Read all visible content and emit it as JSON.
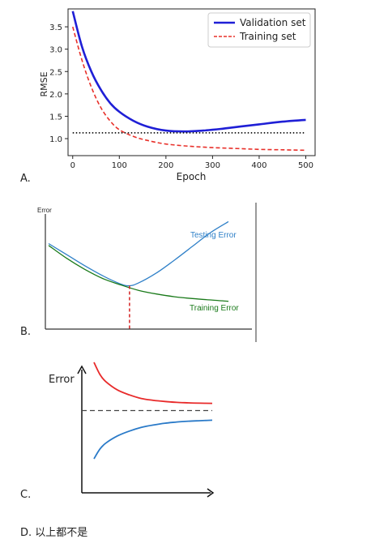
{
  "options": {
    "a_label": "A.",
    "b_label": "B.",
    "c_label": "C.",
    "d_text": "D. 以上都不是"
  },
  "chart_data": [
    {
      "type": "line",
      "xlabel": "Epoch",
      "ylabel": "RMSE",
      "xlim": [
        -10,
        520
      ],
      "ylim": [
        0.62,
        3.9
      ],
      "xticks": [
        "0",
        "100",
        "200",
        "300",
        "400",
        "500"
      ],
      "yticks": [
        "1.0",
        "1.5",
        "2.0",
        "2.5",
        "3.0",
        "3.5"
      ],
      "grid": false,
      "legend": "top-right",
      "series": [
        {
          "name": "Validation set",
          "color": "#1f1fd6",
          "style": "solid",
          "x": [
            0,
            20,
            40,
            60,
            80,
            100,
            130,
            160,
            200,
            240,
            280,
            320,
            360,
            400,
            450,
            500
          ],
          "y": [
            3.85,
            3.05,
            2.5,
            2.1,
            1.8,
            1.6,
            1.4,
            1.27,
            1.18,
            1.16,
            1.18,
            1.22,
            1.27,
            1.32,
            1.38,
            1.42
          ]
        },
        {
          "name": "Training set",
          "color": "#e8302a",
          "style": "dashed",
          "x": [
            0,
            20,
            40,
            60,
            80,
            100,
            130,
            160,
            200,
            250,
            300,
            350,
            400,
            450,
            500
          ],
          "y": [
            3.5,
            2.75,
            2.15,
            1.7,
            1.4,
            1.2,
            1.05,
            0.96,
            0.88,
            0.83,
            0.8,
            0.78,
            0.76,
            0.75,
            0.74
          ]
        },
        {
          "color": "#111111",
          "style": "dotted",
          "x": [
            0,
            500
          ],
          "y": [
            1.13,
            1.13
          ]
        }
      ]
    },
    {
      "type": "line",
      "ylabel": "Error",
      "legend": "none",
      "series": [
        {
          "name": "Testing Error",
          "color": "#2f80c8",
          "x": [
            0,
            0.1,
            0.2,
            0.3,
            0.4,
            0.45,
            0.5,
            0.6,
            0.7,
            0.8,
            0.9,
            1.0
          ],
          "y": [
            0.88,
            0.76,
            0.64,
            0.53,
            0.44,
            0.42,
            0.45,
            0.56,
            0.7,
            0.85,
            1.0,
            1.12
          ]
        },
        {
          "name": "Training Error",
          "color": "#1a7a1a",
          "x": [
            0,
            0.1,
            0.2,
            0.3,
            0.4,
            0.5,
            0.6,
            0.7,
            0.8,
            0.9,
            1.0
          ],
          "y": [
            0.86,
            0.72,
            0.6,
            0.5,
            0.43,
            0.37,
            0.33,
            0.3,
            0.28,
            0.265,
            0.25
          ]
        }
      ],
      "marker_x": 0.45,
      "marker_color": "#d42020"
    },
    {
      "type": "line",
      "ylabel": "Error",
      "legend": "none",
      "series": [
        {
          "color": "#e82a2a",
          "x": [
            0,
            0.05,
            0.1,
            0.2,
            0.3,
            0.4,
            0.5,
            0.6,
            0.7,
            0.8,
            0.9,
            1.0
          ],
          "y": [
            1.0,
            0.9,
            0.84,
            0.77,
            0.73,
            0.7,
            0.685,
            0.675,
            0.668,
            0.664,
            0.661,
            0.66
          ]
        },
        {
          "color": "#2a7ac8",
          "x": [
            0,
            0.05,
            0.1,
            0.2,
            0.3,
            0.4,
            0.5,
            0.6,
            0.7,
            0.8,
            0.9,
            1.0
          ],
          "y": [
            0.2,
            0.28,
            0.33,
            0.39,
            0.43,
            0.46,
            0.48,
            0.495,
            0.505,
            0.512,
            0.516,
            0.52
          ]
        },
        {
          "color": "#444444",
          "style": "dashed",
          "x": [
            0,
            1.0
          ],
          "y": [
            0.6,
            0.6
          ]
        }
      ]
    }
  ]
}
